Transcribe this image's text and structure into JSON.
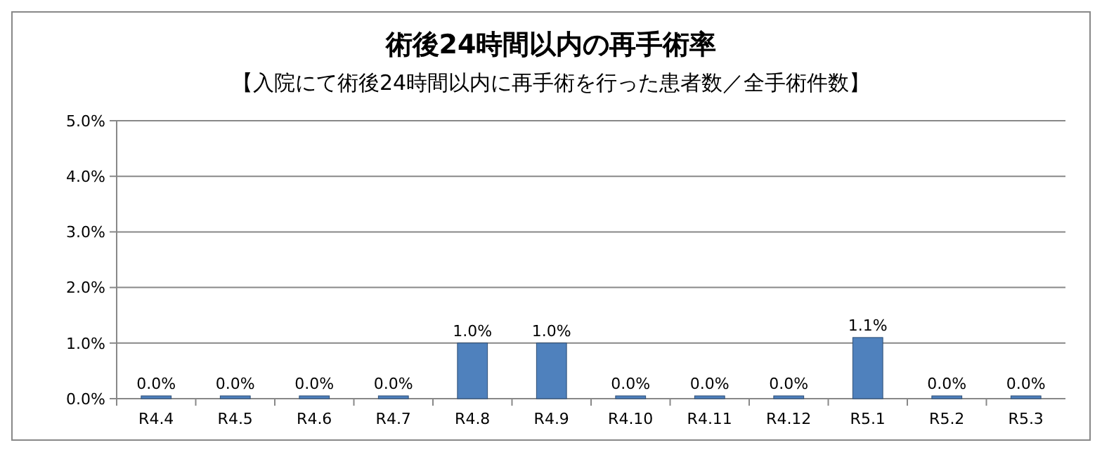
{
  "chart_data": {
    "type": "bar",
    "title": "術後24時間以内の再手術率",
    "subtitle": "【入院にて術後24時間以内に再手術を行った患者数／全手術件数】",
    "categories": [
      "R4.4",
      "R4.5",
      "R4.6",
      "R4.7",
      "R4.8",
      "R4.9",
      "R4.10",
      "R4.11",
      "R4.12",
      "R5.1",
      "R5.2",
      "R5.3"
    ],
    "values": [
      0,
      0,
      0,
      0,
      1.0,
      1.0,
      0,
      0,
      0,
      1.1,
      0,
      0
    ],
    "color": "#4f81bd",
    "ylim": [
      0,
      5
    ],
    "yticks": [
      {
        "value": 0,
        "label": "0.0%"
      },
      {
        "value": 1,
        "label": "1.0%"
      },
      {
        "value": 2,
        "label": "2.0%"
      },
      {
        "value": 3,
        "label": "3.0%"
      },
      {
        "value": 4,
        "label": "4.0%"
      },
      {
        "value": 5,
        "label": "5.0%"
      }
    ],
    "value_labels": [
      "0.0%",
      "0.0%",
      "0.0%",
      "0.0%",
      "1.0%",
      "1.0%",
      "0.0%",
      "0.0%",
      "0.0%",
      "1.1%",
      "0.0%",
      "0.0%"
    ],
    "grid": "y"
  }
}
